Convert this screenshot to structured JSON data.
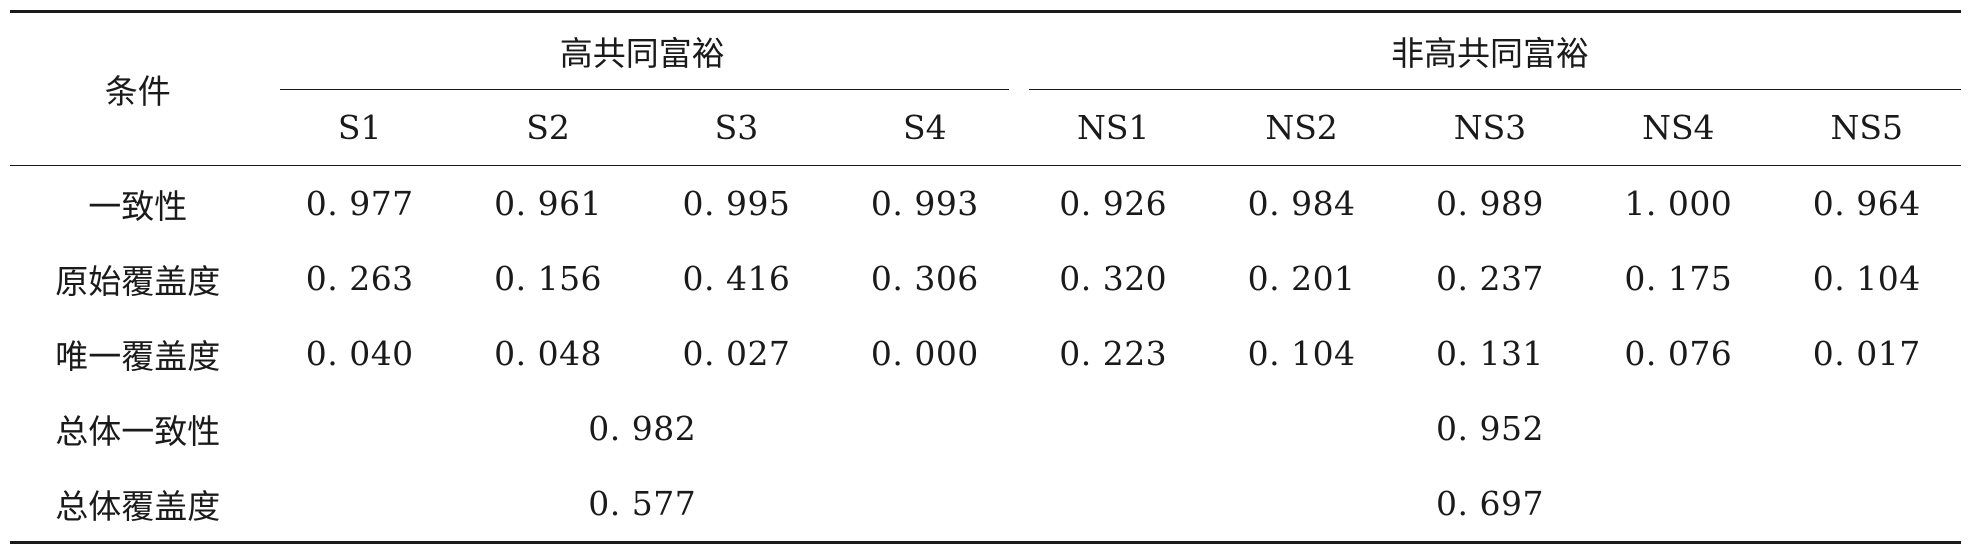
{
  "table": {
    "corner_label": "条件",
    "groups": [
      "高共同富裕",
      "非高共同富裕"
    ],
    "columns": [
      "S1",
      "S2",
      "S3",
      "S4",
      "NS1",
      "NS2",
      "NS3",
      "NS4",
      "NS5"
    ],
    "rows": [
      {
        "label": "一致性",
        "values": [
          "0. 977",
          "0. 961",
          "0. 995",
          "0. 993",
          "0. 926",
          "0. 984",
          "0. 989",
          "1. 000",
          "0. 964"
        ]
      },
      {
        "label": "原始覆盖度",
        "values": [
          "0. 263",
          "0. 156",
          "0. 416",
          "0. 306",
          "0. 320",
          "0. 201",
          "0. 237",
          "0. 175",
          "0. 104"
        ]
      },
      {
        "label": "唯一覆盖度",
        "values": [
          "0. 040",
          "0. 048",
          "0. 027",
          "0. 000",
          "0. 223",
          "0. 104",
          "0. 131",
          "0. 076",
          "0. 017"
        ]
      }
    ],
    "summary": [
      {
        "label": "总体一致性",
        "high": "0. 982",
        "non_high": "0. 952"
      },
      {
        "label": "总体覆盖度",
        "high": "0. 577",
        "non_high": "0. 697"
      }
    ]
  }
}
